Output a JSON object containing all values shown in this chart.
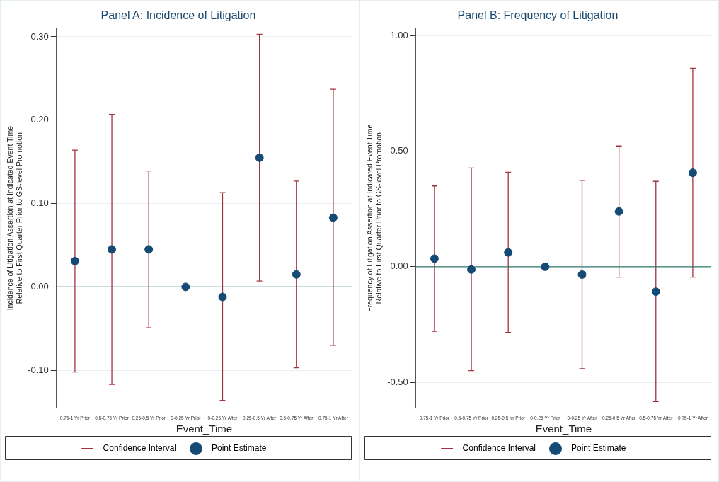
{
  "chart_data": [
    {
      "type": "scatter",
      "title": "Panel A: Incidence of Litigation",
      "xlabel": "Event_Time",
      "ylabel": "Incidence of Litigation Assertion at Indicated Event Time\nRelative to First Quarter Prior to GS-level Promotion",
      "categories": [
        "0.75-1 Yr Prior",
        "0.5-0.75 Yr Prior",
        "0.25-0.5 Yr Prior",
        "0-0.25 Yr Prior",
        "0-0.25 Yr After",
        "0.25-0.5 Yr After",
        "0.5-0.75 Yr After",
        "0.75-1 Yr After"
      ],
      "series": [
        {
          "name": "Confidence Interval",
          "color": "#a3343f",
          "marker": "none",
          "values": [
            null,
            null,
            null,
            null,
            null,
            null,
            null,
            null
          ]
        },
        {
          "name": "Point Estimate",
          "color": "#144a74",
          "marker": "circle",
          "values": [
            0.031,
            0.045,
            0.045,
            0,
            -0.012,
            0.155,
            0.015,
            0.083
          ],
          "errors": [
            [
              -0.102,
              0.164
            ],
            [
              -0.117,
              0.207
            ],
            [
              -0.049,
              0.139
            ],
            null,
            [
              -0.136,
              0.113
            ],
            [
              0.007,
              0.303
            ],
            [
              -0.097,
              0.127
            ],
            [
              -0.07,
              0.237
            ]
          ]
        }
      ],
      "ylim": [
        -0.145,
        0.31
      ],
      "yticks": [
        {
          "value": -0.1,
          "label": "-0.10"
        },
        {
          "value": 0,
          "label": "0.00"
        },
        {
          "value": 0.1,
          "label": "0.10"
        },
        {
          "value": 0.2,
          "label": "0.20"
        },
        {
          "value": 0.3,
          "label": "0.30"
        }
      ],
      "ref_lines": [
        {
          "axis": "y",
          "value": 0,
          "color": "#2f7a6c"
        }
      ],
      "grid": "y",
      "legend": "bottom"
    },
    {
      "type": "scatter",
      "title": "Panel B: Frequency of Litigation",
      "xlabel": "Event_Time",
      "ylabel": "Frequency of Litigation Assertion at Indicated Event Time\nRelative to First Quarter Prior to GS-level Promotion",
      "categories": [
        "0.75-1 Yr Prior",
        "0.5-0.75 Yr Prior",
        "0.25-0.5 Yr Prior",
        "0-0.25 Yr Prior",
        "0-0.25 Yr After",
        "0.25-0.5 Yr After",
        "0.5-0.75 Yr After",
        "0.75-1 Yr After"
      ],
      "series": [
        {
          "name": "Confidence Interval",
          "color": "#a3343f",
          "marker": "none",
          "values": [
            null,
            null,
            null,
            null,
            null,
            null,
            null,
            null
          ]
        },
        {
          "name": "Point Estimate",
          "color": "#144a74",
          "marker": "circle",
          "values": [
            0.035,
            -0.012,
            0.062,
            0,
            -0.034,
            0.239,
            -0.108,
            0.406
          ],
          "errors": [
            [
              -0.279,
              0.349
            ],
            [
              -0.449,
              0.427
            ],
            [
              -0.284,
              0.408
            ],
            null,
            [
              -0.441,
              0.373
            ],
            [
              -0.045,
              0.522
            ],
            [
              -0.583,
              0.369
            ],
            [
              -0.045,
              0.858
            ]
          ]
        }
      ],
      "ylim": [
        -0.61,
        1.03
      ],
      "yticks": [
        {
          "value": -0.5,
          "label": "-0.50"
        },
        {
          "value": 0,
          "label": "0.00"
        },
        {
          "value": 0.5,
          "label": "0.50"
        },
        {
          "value": 1,
          "label": "1.00"
        }
      ],
      "ref_lines": [
        {
          "axis": "y",
          "value": 0,
          "color": "#2f7a6c"
        }
      ],
      "grid": "y",
      "legend": "bottom"
    }
  ]
}
